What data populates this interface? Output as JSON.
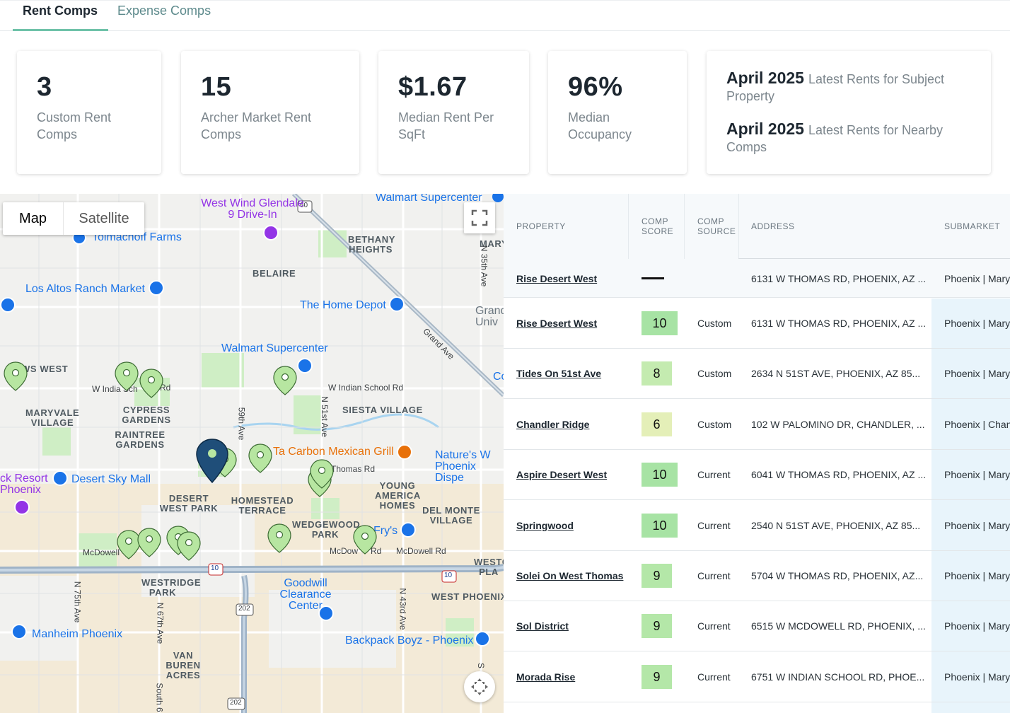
{
  "tabs": [
    {
      "label": "Rent Comps",
      "active": true
    },
    {
      "label": "Expense Comps",
      "active": false
    }
  ],
  "stats": [
    {
      "value": "3",
      "label": "Custom Rent Comps"
    },
    {
      "value": "15",
      "label": "Archer Market Rent Comps"
    },
    {
      "value": "$1.67",
      "label": "Median Rent Per SqFt"
    },
    {
      "value": "96%",
      "label": "Median Occupancy"
    }
  ],
  "latest": [
    {
      "date": "April 2025",
      "label": "Latest Rents for Subject Property"
    },
    {
      "date": "April 2025",
      "label": "Latest Rents for Nearby Comps"
    }
  ],
  "map": {
    "toggle": {
      "map": "Map",
      "satellite": "Satellite"
    },
    "fullscreen_icon": "fullscreen-icon",
    "recenter_icon": "recenter-icon",
    "neighborhoods": [
      "BETHANY HEIGHTS",
      "BELAIRE",
      "MARYVALE VILLAGE",
      "CYPRESS GARDENS",
      "RAINTREE GARDENS",
      "SIESTA VILLAGE",
      "DESERT WEST PARK",
      "HOMESTEAD TERRACE",
      "YOUNG AMERICA HOMES",
      "DEL MONTE VILLAGE",
      "WEDGEWOOD PARK",
      "WESTRIDGE PARK",
      "WEST PHOENIX",
      "VAN BUREN ACRES",
      "WS WEST",
      "MARY",
      "WESTO PLA"
    ],
    "pois": [
      "Walmart Supercenter",
      "West Wind Glendale 9 Drive-In",
      "Tolmachoff Farms",
      "Los Altos Ranch Market",
      "The Home Depot",
      "Walmart Supercenter",
      "Ta Carbon Mexican Grill",
      "Nature's W Phoenix Dispe",
      "Desert Sky Mall",
      "ck Resort Phoenix",
      "Fry's",
      "Goodwill Clearance Center",
      "Manheim Phoenix",
      "Backpack Boyz - Phoenix",
      "Grand Univ",
      "Co"
    ],
    "streets": [
      "W Indian School Rd",
      "W India Sch",
      "Rd",
      "59th Ave",
      "N 51st Ave",
      "Thomas Rd",
      "McDowell Rd",
      "McDow",
      "Rd",
      "McDowell",
      "N 75th Ave",
      "N 67th Ave",
      "N 43rd Ave",
      "Grand Ave",
      "N 35th Ave",
      "South 6",
      "S"
    ],
    "shields": [
      "60",
      "10",
      "10",
      "202",
      "202"
    ]
  },
  "table": {
    "headers": {
      "property": "PROPERTY",
      "comp_score": "COMP SCORE",
      "comp_source": "COMP SOURCE",
      "address": "ADDRESS",
      "submarket": "SUBMARKET"
    },
    "subject": {
      "property": "Rise Desert West",
      "score": "",
      "source": "",
      "address": "6131 W THOMAS RD, PHOENIX, AZ ...",
      "submarket": "Phoenix | Mary"
    },
    "rows": [
      {
        "property": "Rise Desert West",
        "score": "10",
        "source": "Custom",
        "address": "6131 W THOMAS RD, PHOENIX, AZ ...",
        "submarket": "Phoenix | Mary",
        "score_color": "#a7e3a4"
      },
      {
        "property": "Tides On 51st Ave",
        "score": "8",
        "source": "Custom",
        "address": "2634 N 51ST AVE, PHOENIX, AZ 85...",
        "submarket": "Phoenix | Mary",
        "score_color": "#c4ebb0"
      },
      {
        "property": "Chandler Ridge",
        "score": "6",
        "source": "Custom",
        "address": "102 W PALOMINO DR, CHANDLER, ...",
        "submarket": "Phoenix | Chan",
        "score_color": "#e4efb8"
      },
      {
        "property": "Aspire Desert West",
        "score": "10",
        "source": "Current",
        "address": "6041 W THOMAS RD, PHOENIX, AZ ...",
        "submarket": "Phoenix | Mary",
        "score_color": "#a7e3a4"
      },
      {
        "property": "Springwood",
        "score": "10",
        "source": "Current",
        "address": "2540 N 51ST AVE, PHOENIX, AZ 85...",
        "submarket": "Phoenix | Mary",
        "score_color": "#a7e3a4"
      },
      {
        "property": "Solei On West Thomas",
        "score": "9",
        "source": "Current",
        "address": "5704 W THOMAS RD, PHOENIX, AZ...",
        "submarket": "Phoenix | Mary",
        "score_color": "#b4e7a8"
      },
      {
        "property": "Sol District",
        "score": "9",
        "source": "Current",
        "address": "6515 W MCDOWELL RD, PHOENIX, ...",
        "submarket": "Phoenix | Mary",
        "score_color": "#b4e7a8"
      },
      {
        "property": "Morada Rise",
        "score": "9",
        "source": "Current",
        "address": "6751 W INDIAN SCHOOL RD, PHOE...",
        "submarket": "Phoenix | Mary",
        "score_color": "#b4e7a8"
      }
    ]
  }
}
